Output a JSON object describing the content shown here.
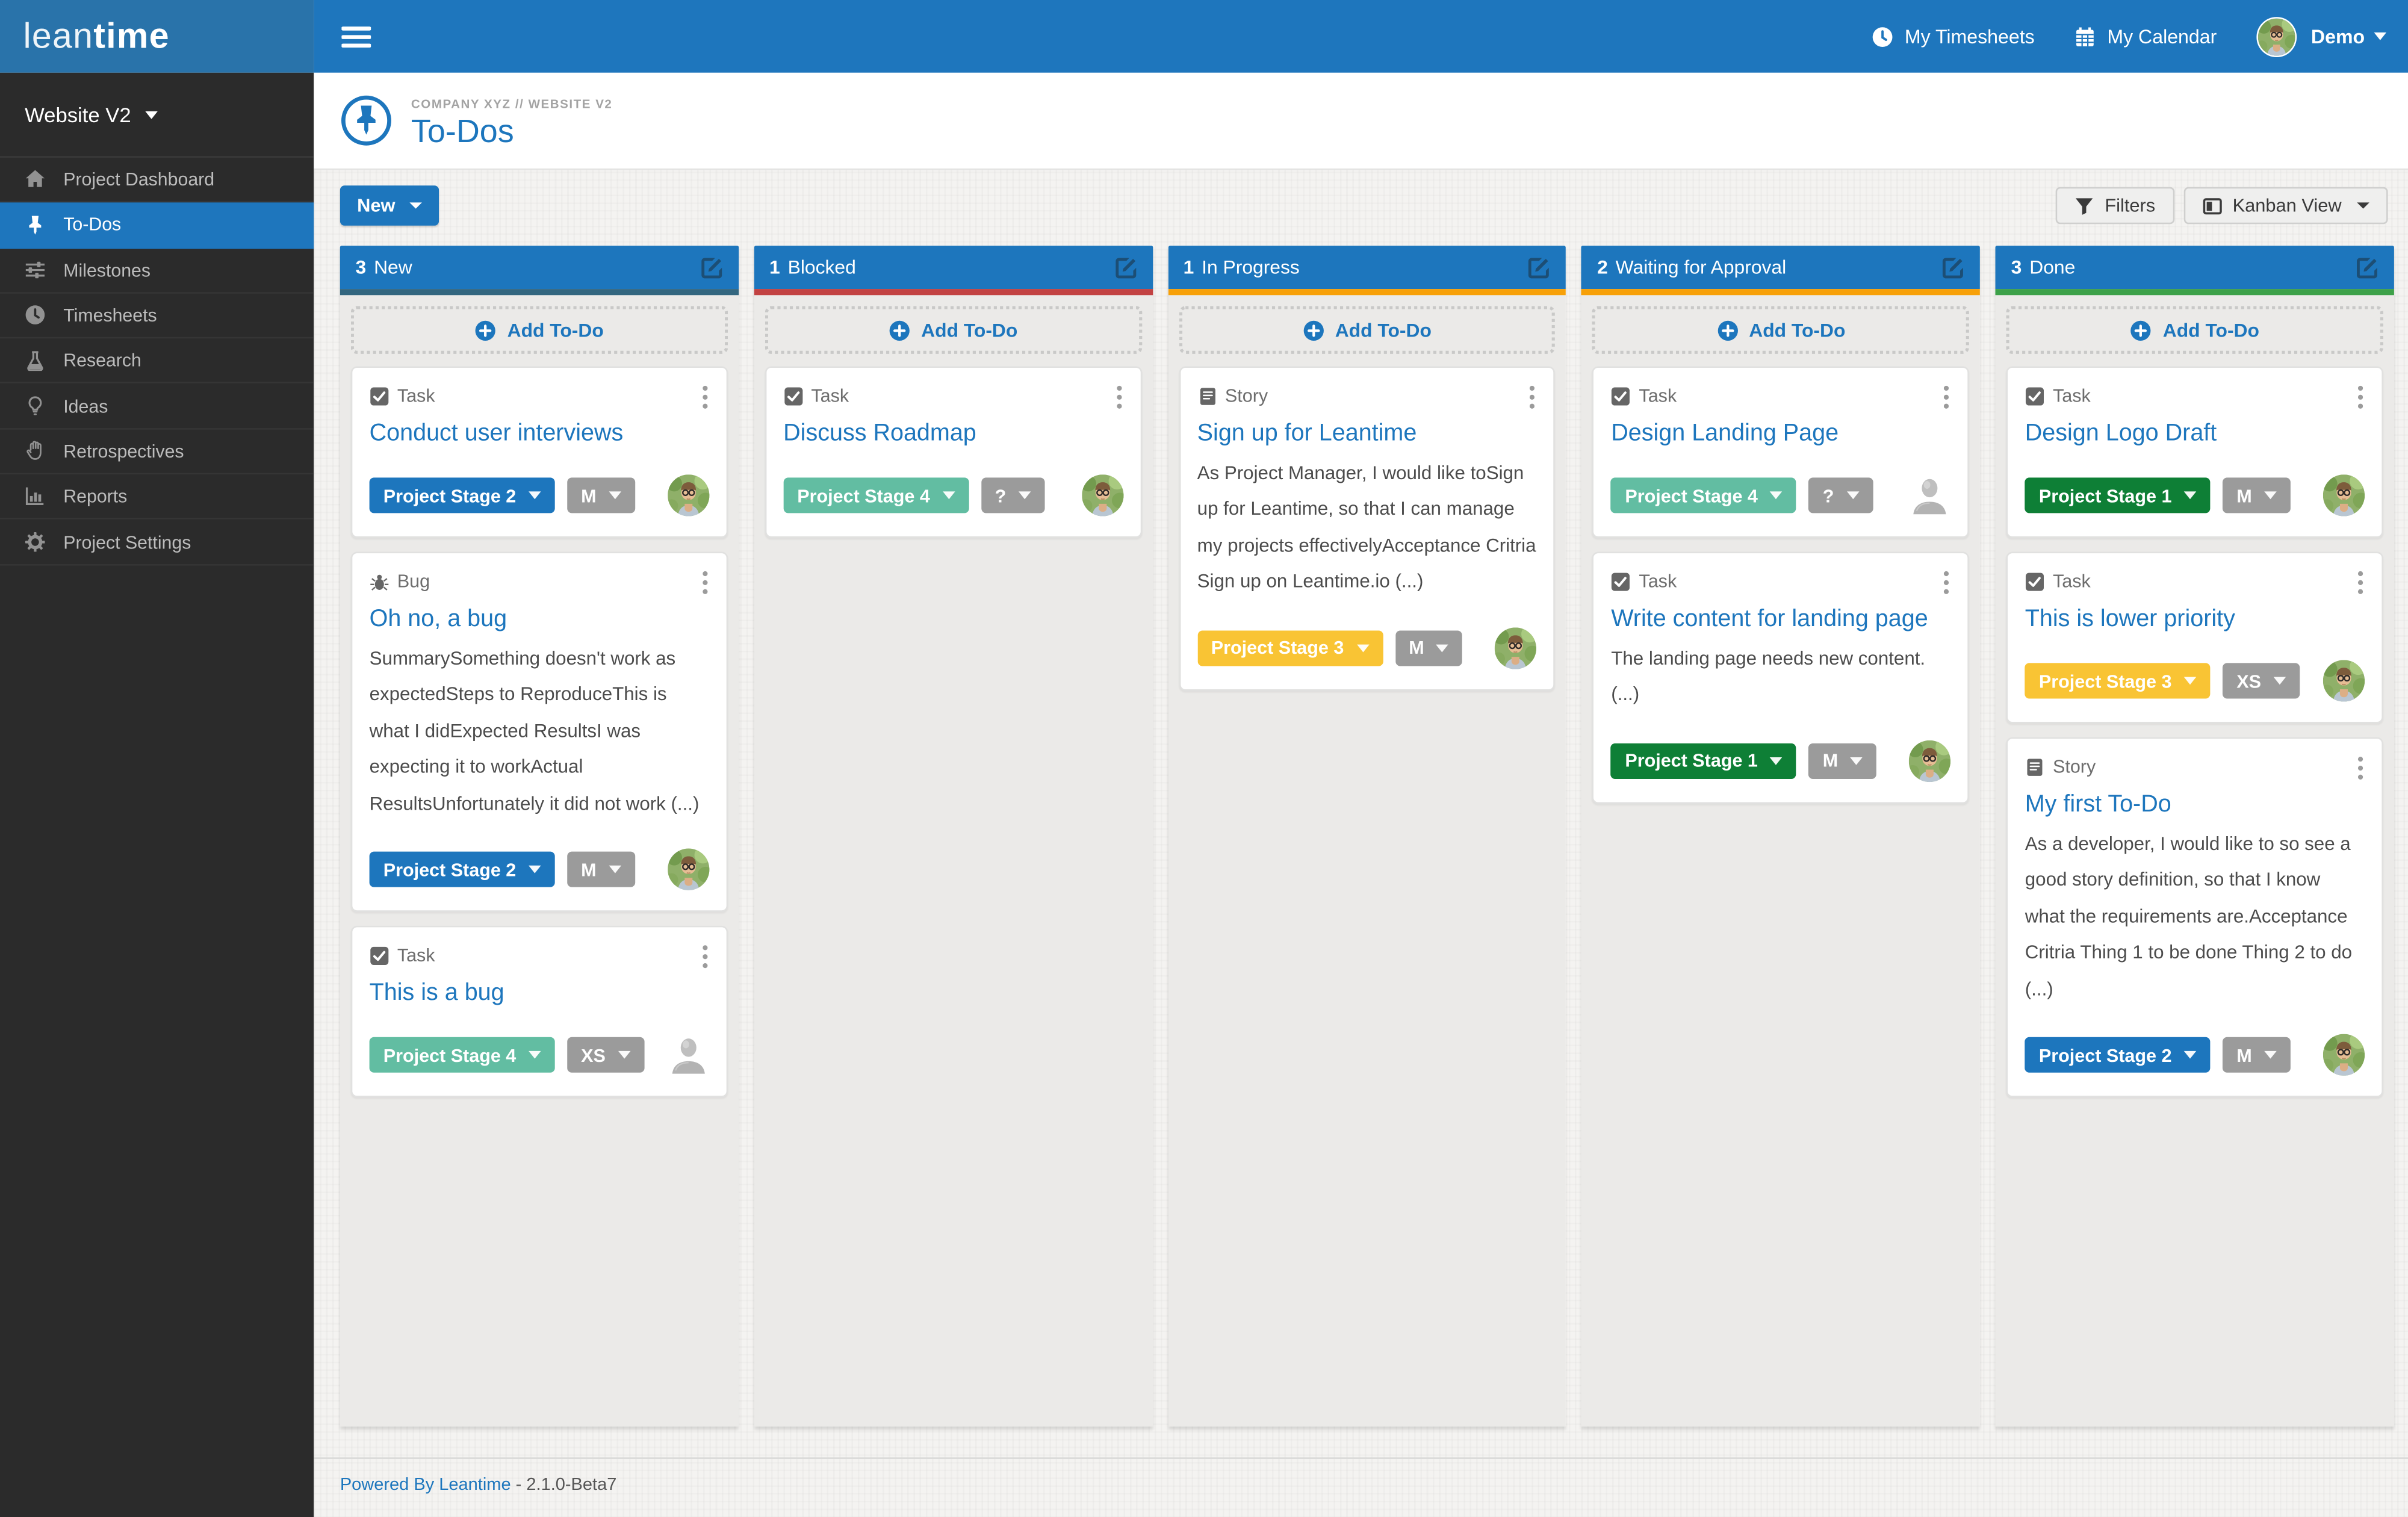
{
  "brand": {
    "logo_lean": "lean",
    "logo_time": "time"
  },
  "topbar": {
    "my_timesheets": "My Timesheets",
    "my_calendar": "My Calendar",
    "user_name": "Demo"
  },
  "sidebar": {
    "project_selector": "Website V2",
    "items": [
      {
        "label": "Project Dashboard",
        "icon": "home-icon",
        "active": false
      },
      {
        "label": "To-Dos",
        "icon": "thumbtack-icon",
        "active": true
      },
      {
        "label": "Milestones",
        "icon": "sliders-icon",
        "active": false
      },
      {
        "label": "Timesheets",
        "icon": "clock-icon",
        "active": false
      },
      {
        "label": "Research",
        "icon": "flask-icon",
        "active": false
      },
      {
        "label": "Ideas",
        "icon": "lightbulb-icon",
        "active": false
      },
      {
        "label": "Retrospectives",
        "icon": "hand-icon",
        "active": false
      },
      {
        "label": "Reports",
        "icon": "bar-chart-icon",
        "active": false
      },
      {
        "label": "Project Settings",
        "icon": "gear-icon",
        "active": false
      }
    ]
  },
  "page_header": {
    "breadcrumb": "COMPANY XYZ // WEBSITE V2",
    "title": "To-Dos",
    "title_icon": "pin-circle-icon"
  },
  "toolbar": {
    "new_label": "New",
    "filters_label": "Filters",
    "view_label": "Kanban View"
  },
  "board": {
    "add_todo_label": "Add To-Do",
    "columns": [
      {
        "count": "3",
        "title": "New",
        "strip_color": "#33667f",
        "cards": [
          {
            "type_icon": "check-square-icon",
            "type_label": "Task",
            "title": "Conduct user interviews",
            "stage": {
              "label": "Project Stage 2",
              "color": "#1d76bd"
            },
            "size": "M",
            "assignee": "photo"
          },
          {
            "type_icon": "bug-icon",
            "type_label": "Bug",
            "title": "Oh no, a bug",
            "description": "SummarySomething doesn't work as expectedSteps to ReproduceThis is what I didExpected ResultsI was expecting it to workActual ResultsUnfortunately it did not work (...)",
            "stage": {
              "label": "Project Stage 2",
              "color": "#1d76bd"
            },
            "size": "M",
            "assignee": "photo"
          },
          {
            "type_icon": "check-square-icon",
            "type_label": "Task",
            "title": "This is a bug",
            "stage": {
              "label": "Project Stage 4",
              "color": "#62bda2"
            },
            "size": "XS",
            "assignee": "placeholder"
          }
        ]
      },
      {
        "count": "1",
        "title": "Blocked",
        "strip_color": "#c24242",
        "cards": [
          {
            "type_icon": "check-square-icon",
            "type_label": "Task",
            "title": "Discuss Roadmap",
            "stage": {
              "label": "Project Stage 4",
              "color": "#62bda2"
            },
            "size": "?",
            "assignee": "photo"
          }
        ]
      },
      {
        "count": "1",
        "title": "In Progress",
        "strip_color": "#f7a008",
        "cards": [
          {
            "type_icon": "book-icon",
            "type_label": "Story",
            "title": "Sign up for Leantime",
            "description": "As Project Manager, I would like toSign up for Leantime, so that I can manage my projects effectivelyAcceptance Critria Sign up on Leantime.io (...)",
            "stage": {
              "label": "Project Stage 3",
              "color": "#f9c434"
            },
            "size": "M",
            "assignee": "photo"
          }
        ]
      },
      {
        "count": "2",
        "title": "Waiting for Approval",
        "strip_color": "#f7a008",
        "cards": [
          {
            "type_icon": "check-square-icon",
            "type_label": "Task",
            "title": "Design Landing Page",
            "stage": {
              "label": "Project Stage 4",
              "color": "#62bda2"
            },
            "size": "?",
            "assignee": "placeholder"
          },
          {
            "type_icon": "check-square-icon",
            "type_label": "Task",
            "title": "Write content for landing page",
            "description": "The landing page needs new content.  (...)",
            "stage": {
              "label": "Project Stage 1",
              "color": "#0e7f36"
            },
            "size": "M",
            "assignee": "photo"
          }
        ]
      },
      {
        "count": "3",
        "title": "Done",
        "strip_color": "#3da149",
        "cards": [
          {
            "type_icon": "check-square-icon",
            "type_label": "Task",
            "title": "Design Logo Draft",
            "stage": {
              "label": "Project Stage 1",
              "color": "#0e7f36"
            },
            "size": "M",
            "assignee": "photo"
          },
          {
            "type_icon": "check-square-icon",
            "type_label": "Task",
            "title": "This is lower priority",
            "stage": {
              "label": "Project Stage 3",
              "color": "#f9c434"
            },
            "size": "XS",
            "assignee": "photo"
          },
          {
            "type_icon": "book-icon",
            "type_label": "Story",
            "title": "My first To-Do",
            "description": "As a developer, I would like to so see a good story definition, so that I know what the requirements are.Acceptance Critria Thing 1 to be done Thing 2 to do (...)",
            "stage": {
              "label": "Project Stage 2",
              "color": "#1d76bd"
            },
            "size": "M",
            "assignee": "photo"
          }
        ]
      }
    ]
  },
  "footer": {
    "link_label": "Powered By Leantime",
    "version": "- 2.1.0-Beta7"
  },
  "colors": {
    "accent": "#1d76bd",
    "brand_bar": "#2973aa",
    "sidebar_bg": "#2b2b2b",
    "column_body": "#ebeae8",
    "size_chip": "#9b9b9b",
    "status_new": "#33667f",
    "status_blocked": "#c24242",
    "status_progress": "#f7a008",
    "status_done": "#3da149"
  }
}
